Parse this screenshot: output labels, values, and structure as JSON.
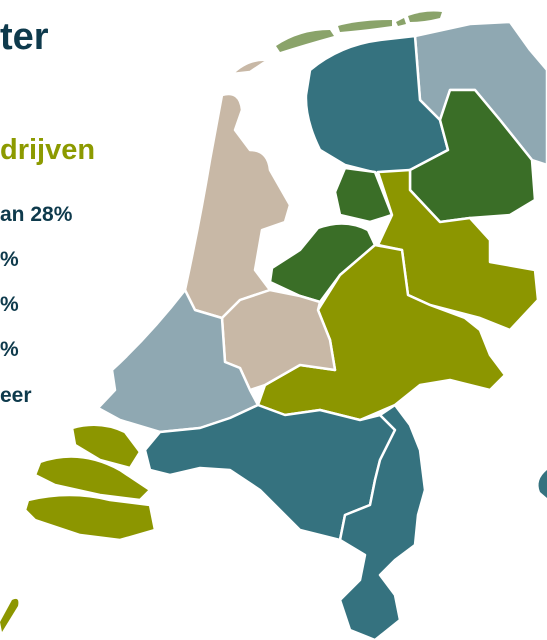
{
  "header": {
    "title": "ter",
    "subtitle": "drijven"
  },
  "legend": {
    "items": [
      "an 28%",
      "%",
      "%",
      "%",
      "eer"
    ]
  }
}
